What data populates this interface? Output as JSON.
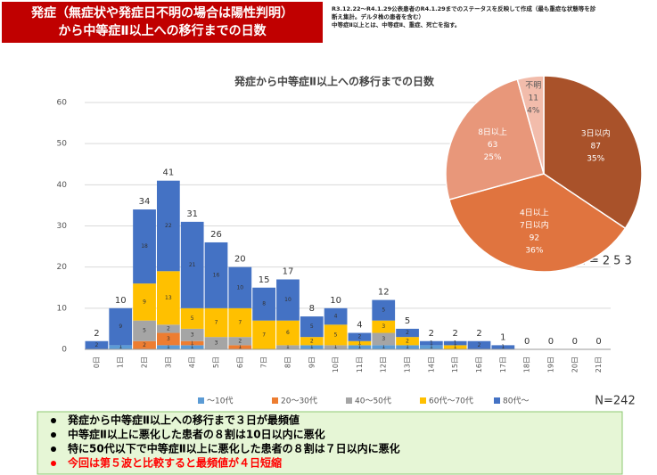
{
  "header": {
    "title": [
      "発症（無症状や発症日不明の場合は陽性判明）",
      "から中等症Ⅱ以上への移行までの日数"
    ],
    "notes": [
      "R3.12.22～R4.1.29公表患者のR4.1.29までのステータスを反映して作成（最も重症な状態等を診",
      "断え集計。デルタ株の患者を含む）",
      "中等症Ⅱ以上とは、中等症Ⅱ、重症、死亡を指す。"
    ]
  },
  "chart_data": [
    {
      "type": "stacked_bar",
      "title": "発症から中等症Ⅱ以上への移行までの日数",
      "categories": [
        "0日",
        "1日",
        "2日",
        "3日",
        "4日",
        "5日",
        "6日",
        "7日",
        "8日",
        "9日",
        "10日",
        "11日",
        "12日",
        "13日",
        "14日",
        "15日",
        "16日",
        "17日",
        "18日",
        "19日",
        "20日",
        "21日"
      ],
      "series": [
        {
          "name": "～10代",
          "color": "#5b9bd5",
          "values": [
            0,
            1,
            0,
            1,
            1,
            0,
            0,
            0,
            0,
            1,
            0,
            1,
            1,
            1,
            1,
            0,
            0,
            0,
            0,
            0,
            0,
            0
          ]
        },
        {
          "name": "20～30代",
          "color": "#ed7d31",
          "values": [
            0,
            0,
            2,
            3,
            1,
            0,
            1,
            0,
            0,
            0,
            0,
            0,
            0,
            0,
            0,
            0,
            0,
            0,
            0,
            0,
            0,
            0
          ]
        },
        {
          "name": "40～50代",
          "color": "#a5a5a5",
          "values": [
            0,
            0,
            5,
            2,
            3,
            3,
            2,
            0,
            1,
            0,
            1,
            0,
            3,
            0,
            0,
            0,
            0,
            0,
            0,
            0,
            0,
            0
          ]
        },
        {
          "name": "60代～70代",
          "color": "#ffc000",
          "values": [
            0,
            0,
            9,
            13,
            5,
            7,
            7,
            7,
            6,
            2,
            5,
            1,
            3,
            2,
            0,
            1,
            0,
            0,
            0,
            0,
            0,
            0
          ]
        },
        {
          "name": "80代～",
          "color": "#4472c4",
          "values": [
            2,
            9,
            18,
            22,
            21,
            16,
            10,
            8,
            10,
            5,
            4,
            2,
            5,
            2,
            1,
            1,
            2,
            1,
            0,
            0,
            0,
            0
          ]
        }
      ],
      "totals": [
        2,
        10,
        34,
        41,
        31,
        26,
        20,
        15,
        17,
        8,
        10,
        4,
        12,
        5,
        2,
        2,
        2,
        1,
        0,
        0,
        0,
        0
      ],
      "ylim": [
        0,
        60
      ],
      "yticks": [
        0,
        10,
        20,
        30,
        40,
        50,
        60
      ],
      "grid": true,
      "legend": "bottom",
      "annotation": "N=242"
    },
    {
      "type": "pie",
      "categories": [
        [
          "3日以内"
        ],
        [
          "4日以上",
          "7日以内"
        ],
        [
          "8日以上"
        ],
        [
          "不明"
        ]
      ],
      "values": [
        87,
        92,
        63,
        11
      ],
      "percent_labels": [
        "35%",
        "36%",
        "25%",
        "4%"
      ],
      "colors": [
        "#a9522a",
        "#e0743f",
        "#e8977a",
        "#f2bcab"
      ],
      "annotation": "N=253"
    }
  ],
  "bullets": [
    {
      "text": "発症から中等症Ⅱ以上への移行まで３日が最頻値",
      "color": "#000000"
    },
    {
      "text": "中等症Ⅱ以上に悪化した患者の８割は10日以内に悪化",
      "color": "#000000"
    },
    {
      "text": "特に50代以下で中等症Ⅱ以上に悪化した患者の８割は７日以内に悪化",
      "color": "#000000"
    },
    {
      "text": "今回は第５波と比較すると最頻値が４日短縮",
      "color": "#ff0000"
    }
  ]
}
